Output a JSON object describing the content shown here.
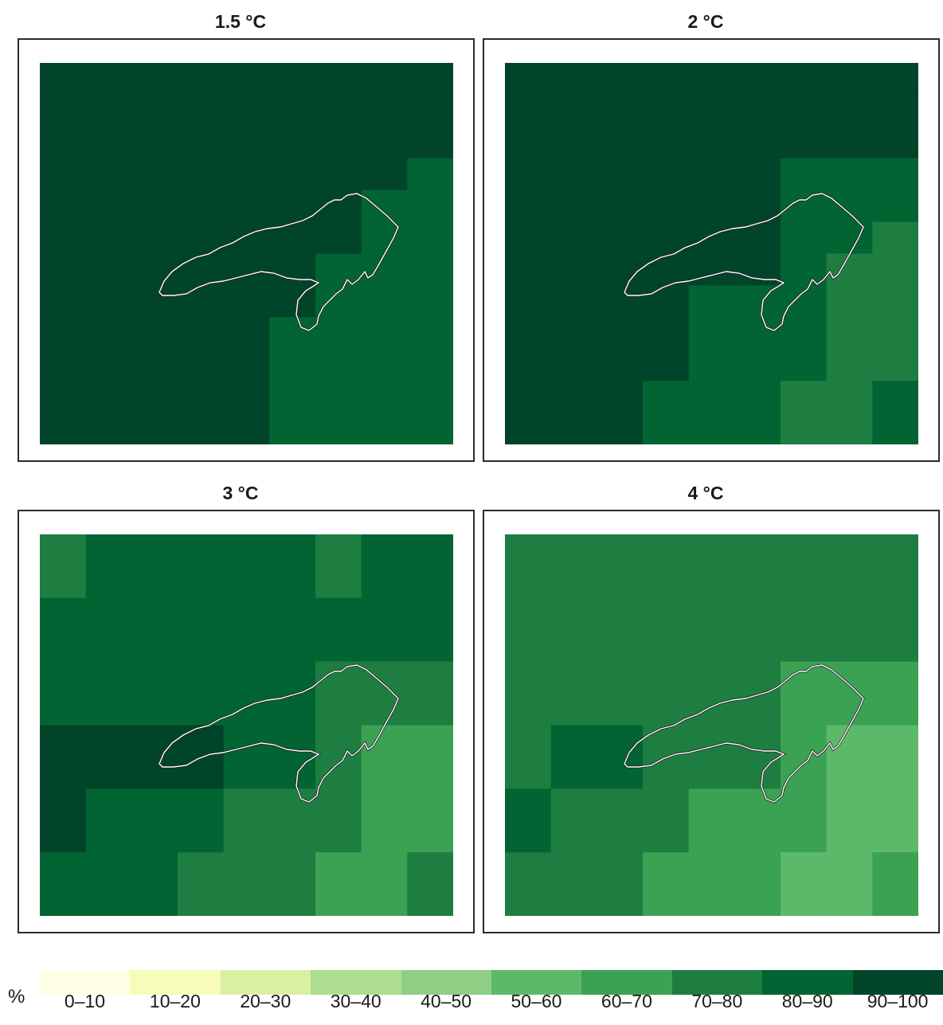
{
  "panels": [
    {
      "title": "1.5 °C",
      "grid": [
        [
          9,
          9,
          9,
          9,
          9,
          9,
          9,
          9,
          9
        ],
        [
          9,
          9,
          9,
          9,
          9,
          9,
          9,
          9,
          9
        ],
        [
          9,
          9,
          9,
          9,
          9,
          9,
          9,
          9,
          9
        ],
        [
          9,
          9,
          9,
          9,
          9,
          9,
          9,
          9,
          8
        ],
        [
          9,
          9,
          9,
          9,
          9,
          9,
          9,
          8,
          8
        ],
        [
          9,
          9,
          9,
          9,
          9,
          9,
          9,
          8,
          8
        ],
        [
          9,
          9,
          9,
          9,
          9,
          9,
          8,
          8,
          8
        ],
        [
          9,
          9,
          9,
          9,
          9,
          9,
          8,
          8,
          8
        ],
        [
          9,
          9,
          9,
          9,
          9,
          8,
          8,
          8,
          8
        ],
        [
          9,
          9,
          9,
          9,
          9,
          8,
          8,
          8,
          8
        ],
        [
          9,
          9,
          9,
          9,
          9,
          8,
          8,
          8,
          8
        ],
        [
          9,
          9,
          9,
          9,
          9,
          8,
          8,
          8,
          8
        ]
      ]
    },
    {
      "title": "2 °C",
      "grid": [
        [
          9,
          9,
          9,
          9,
          9,
          9,
          9,
          9,
          9
        ],
        [
          9,
          9,
          9,
          9,
          9,
          9,
          9,
          9,
          9
        ],
        [
          9,
          9,
          9,
          9,
          9,
          9,
          9,
          9,
          9
        ],
        [
          9,
          9,
          9,
          9,
          9,
          9,
          8,
          8,
          8
        ],
        [
          9,
          9,
          9,
          9,
          9,
          9,
          8,
          8,
          8
        ],
        [
          9,
          9,
          9,
          9,
          9,
          9,
          8,
          8,
          7
        ],
        [
          9,
          9,
          9,
          9,
          9,
          9,
          8,
          7,
          7
        ],
        [
          9,
          9,
          9,
          9,
          8,
          8,
          8,
          7,
          7
        ],
        [
          9,
          9,
          9,
          9,
          8,
          8,
          8,
          7,
          7
        ],
        [
          9,
          9,
          9,
          9,
          8,
          8,
          8,
          7,
          7
        ],
        [
          9,
          9,
          9,
          8,
          8,
          8,
          7,
          7,
          8
        ],
        [
          9,
          9,
          9,
          8,
          8,
          8,
          7,
          7,
          8
        ]
      ]
    },
    {
      "title": "3 °C",
      "grid": [
        [
          7,
          8,
          8,
          8,
          8,
          8,
          7,
          8,
          8
        ],
        [
          7,
          8,
          8,
          8,
          8,
          8,
          7,
          8,
          8
        ],
        [
          8,
          8,
          8,
          8,
          8,
          8,
          8,
          8,
          8
        ],
        [
          8,
          8,
          8,
          8,
          8,
          8,
          8,
          8,
          8
        ],
        [
          8,
          8,
          8,
          8,
          8,
          8,
          7,
          7,
          7
        ],
        [
          8,
          8,
          8,
          8,
          8,
          8,
          7,
          7,
          7
        ],
        [
          9,
          9,
          9,
          9,
          8,
          8,
          7,
          6,
          6
        ],
        [
          9,
          9,
          9,
          9,
          8,
          8,
          7,
          6,
          6
        ],
        [
          9,
          8,
          8,
          8,
          7,
          7,
          7,
          6,
          6
        ],
        [
          9,
          8,
          8,
          8,
          7,
          7,
          7,
          6,
          6
        ],
        [
          8,
          8,
          8,
          7,
          7,
          7,
          6,
          6,
          7
        ],
        [
          8,
          8,
          8,
          7,
          7,
          7,
          6,
          6,
          7
        ]
      ]
    },
    {
      "title": "4 °C",
      "grid": [
        [
          7,
          7,
          7,
          7,
          7,
          7,
          7,
          7,
          7
        ],
        [
          7,
          7,
          7,
          7,
          7,
          7,
          7,
          7,
          7
        ],
        [
          7,
          7,
          7,
          7,
          7,
          7,
          7,
          7,
          7
        ],
        [
          7,
          7,
          7,
          7,
          7,
          7,
          7,
          7,
          7
        ],
        [
          7,
          7,
          7,
          7,
          7,
          7,
          6,
          6,
          6
        ],
        [
          7,
          7,
          7,
          7,
          7,
          7,
          6,
          6,
          6
        ],
        [
          7,
          8,
          8,
          7,
          7,
          7,
          6,
          5,
          5
        ],
        [
          7,
          8,
          8,
          7,
          7,
          7,
          6,
          5,
          5
        ],
        [
          8,
          7,
          7,
          7,
          6,
          6,
          6,
          5,
          5
        ],
        [
          8,
          7,
          7,
          7,
          6,
          6,
          6,
          5,
          5
        ],
        [
          7,
          7,
          7,
          6,
          6,
          6,
          5,
          5,
          6
        ],
        [
          7,
          7,
          7,
          6,
          6,
          6,
          5,
          5,
          6
        ]
      ]
    }
  ],
  "legend": {
    "unit": "%",
    "classes": [
      {
        "label": "0–10",
        "color": "#ffffe5"
      },
      {
        "label": "10–20",
        "color": "#f7fcb9"
      },
      {
        "label": "20–30",
        "color": "#d9f0a3"
      },
      {
        "label": "30–40",
        "color": "#addd8e"
      },
      {
        "label": "40–50",
        "color": "#8fcf83"
      },
      {
        "label": "50–60",
        "color": "#5db96a"
      },
      {
        "label": "60–70",
        "color": "#3ba153"
      },
      {
        "label": "70–80",
        "color": "#1e7e41"
      },
      {
        "label": "80–90",
        "color": "#026432"
      },
      {
        "label": "90–100",
        "color": "#004529"
      }
    ]
  },
  "map_style": {
    "outline_stroke": "#ffffff",
    "outline_shadow": "#222222",
    "frame_color": "#2b2b2b"
  }
}
